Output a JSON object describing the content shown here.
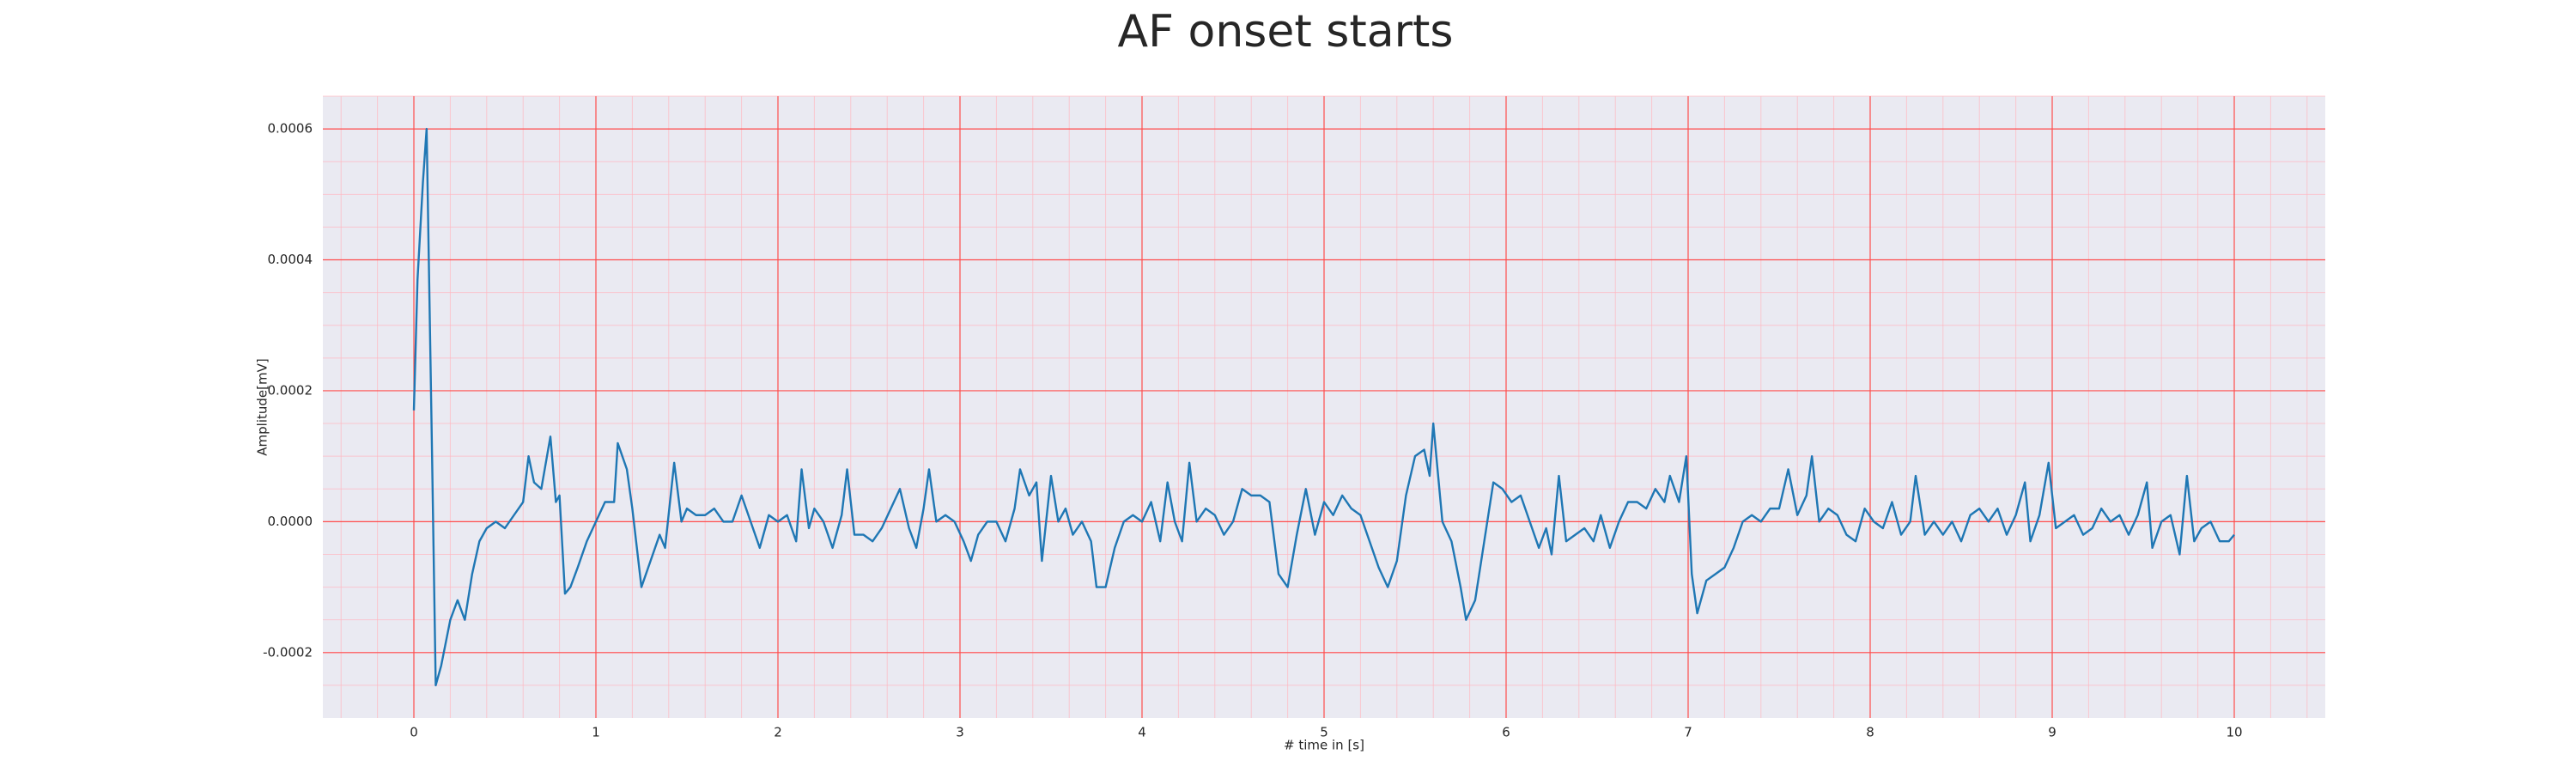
{
  "chart_data": {
    "type": "line",
    "title": "AF onset starts",
    "xlabel": "# time in [s]",
    "ylabel": "Amplitude[mV]",
    "color": "#1f77b4",
    "grid": true,
    "minor_grid": true,
    "xlim": [
      -0.5,
      10.5
    ],
    "ylim": [
      -0.0003,
      0.00065
    ],
    "xticks": [
      0,
      1,
      2,
      3,
      4,
      5,
      6,
      7,
      8,
      9,
      10
    ],
    "yticks": [
      -0.0002,
      {
        "value": 0,
        "label": "0.0000"
      },
      0.0002,
      0.0004,
      0.0006
    ],
    "x": [
      0,
      0.02,
      0.05,
      0.07,
      0.1,
      0.12,
      0.15,
      0.2,
      0.24,
      0.28,
      0.32,
      0.36,
      0.4,
      0.45,
      0.5,
      0.55,
      0.6,
      0.63,
      0.66,
      0.7,
      0.75,
      0.78,
      0.8,
      0.83,
      0.86,
      0.9,
      0.95,
      1.0,
      1.05,
      1.1,
      1.12,
      1.17,
      1.2,
      1.25,
      1.3,
      1.35,
      1.38,
      1.43,
      1.47,
      1.5,
      1.55,
      1.6,
      1.65,
      1.7,
      1.75,
      1.8,
      1.85,
      1.9,
      1.95,
      2.0,
      2.05,
      2.1,
      2.13,
      2.17,
      2.2,
      2.25,
      2.3,
      2.35,
      2.38,
      2.42,
      2.47,
      2.52,
      2.57,
      2.62,
      2.67,
      2.72,
      2.76,
      2.8,
      2.83,
      2.87,
      2.92,
      2.97,
      3.02,
      3.06,
      3.1,
      3.15,
      3.2,
      3.25,
      3.3,
      3.33,
      3.38,
      3.42,
      3.45,
      3.5,
      3.54,
      3.58,
      3.62,
      3.67,
      3.72,
      3.75,
      3.8,
      3.85,
      3.9,
      3.95,
      4.0,
      4.05,
      4.1,
      4.14,
      4.18,
      4.22,
      4.26,
      4.3,
      4.35,
      4.4,
      4.45,
      4.5,
      4.55,
      4.6,
      4.65,
      4.7,
      4.75,
      4.8,
      4.85,
      4.9,
      4.95,
      5.0,
      5.05,
      5.1,
      5.15,
      5.2,
      5.25,
      5.3,
      5.35,
      5.4,
      5.45,
      5.5,
      5.55,
      5.58,
      5.6,
      5.65,
      5.7,
      5.75,
      5.78,
      5.83,
      5.88,
      5.93,
      5.98,
      6.03,
      6.08,
      6.13,
      6.18,
      6.22,
      6.25,
      6.29,
      6.33,
      6.38,
      6.43,
      6.48,
      6.52,
      6.57,
      6.62,
      6.67,
      6.72,
      6.77,
      6.82,
      6.87,
      6.9,
      6.95,
      6.99,
      7.02,
      7.05,
      7.1,
      7.15,
      7.2,
      7.25,
      7.3,
      7.35,
      7.4,
      7.45,
      7.5,
      7.55,
      7.6,
      7.65,
      7.68,
      7.72,
      7.77,
      7.82,
      7.87,
      7.92,
      7.97,
      8.02,
      8.07,
      8.12,
      8.17,
      8.22,
      8.25,
      8.3,
      8.35,
      8.4,
      8.45,
      8.5,
      8.55,
      8.6,
      8.65,
      8.7,
      8.75,
      8.8,
      8.85,
      8.88,
      8.93,
      8.98,
      9.02,
      9.07,
      9.12,
      9.17,
      9.22,
      9.27,
      9.32,
      9.37,
      9.42,
      9.47,
      9.52,
      9.55,
      9.6,
      9.65,
      9.7,
      9.74,
      9.78,
      9.82,
      9.87,
      9.92,
      9.97,
      10.0
    ],
    "values": [
      0.00017,
      0.00037,
      0.00052,
      0.0006,
      0.0001,
      -0.00025,
      -0.00022,
      -0.00015,
      -0.00012,
      -0.00015,
      -8e-05,
      -3e-05,
      -1e-05,
      0.0,
      -1e-05,
      1e-05,
      3e-05,
      0.0001,
      6e-05,
      5e-05,
      0.00013,
      3e-05,
      4e-05,
      -0.00011,
      -0.0001,
      -7e-05,
      -3e-05,
      0.0,
      3e-05,
      3e-05,
      0.00012,
      8e-05,
      2e-05,
      -0.0001,
      -6e-05,
      -2e-05,
      -4e-05,
      9e-05,
      0.0,
      2e-05,
      1e-05,
      1e-05,
      2e-05,
      0.0,
      0.0,
      4e-05,
      0.0,
      -4e-05,
      1e-05,
      0.0,
      1e-05,
      -3e-05,
      8e-05,
      -1e-05,
      2e-05,
      0.0,
      -4e-05,
      1e-05,
      8e-05,
      -2e-05,
      -2e-05,
      -3e-05,
      -1e-05,
      2e-05,
      5e-05,
      -1e-05,
      -4e-05,
      2e-05,
      8e-05,
      0.0,
      1e-05,
      0.0,
      -3e-05,
      -6e-05,
      -2e-05,
      0.0,
      0.0,
      -3e-05,
      2e-05,
      8e-05,
      4e-05,
      6e-05,
      -6e-05,
      7e-05,
      0.0,
      2e-05,
      -2e-05,
      0.0,
      -3e-05,
      -0.0001,
      -0.0001,
      -4e-05,
      0.0,
      1e-05,
      0.0,
      3e-05,
      -3e-05,
      6e-05,
      0.0,
      -3e-05,
      9e-05,
      0.0,
      2e-05,
      1e-05,
      -2e-05,
      0.0,
      5e-05,
      4e-05,
      4e-05,
      3e-05,
      -8e-05,
      -0.0001,
      -2e-05,
      5e-05,
      -2e-05,
      3e-05,
      1e-05,
      4e-05,
      2e-05,
      1e-05,
      -3e-05,
      -7e-05,
      -0.0001,
      -6e-05,
      4e-05,
      0.0001,
      0.00011,
      7e-05,
      0.00015,
      0.0,
      -3e-05,
      -0.0001,
      -0.00015,
      -0.00012,
      -3e-05,
      6e-05,
      5e-05,
      3e-05,
      4e-05,
      0.0,
      -4e-05,
      -1e-05,
      -5e-05,
      7e-05,
      -3e-05,
      -2e-05,
      -1e-05,
      -3e-05,
      1e-05,
      -4e-05,
      0.0,
      3e-05,
      3e-05,
      2e-05,
      5e-05,
      3e-05,
      7e-05,
      3e-05,
      0.0001,
      -8e-05,
      -0.00014,
      -9e-05,
      -8e-05,
      -7e-05,
      -4e-05,
      0.0,
      1e-05,
      0.0,
      2e-05,
      2e-05,
      8e-05,
      1e-05,
      4e-05,
      0.0001,
      0.0,
      2e-05,
      1e-05,
      -2e-05,
      -3e-05,
      2e-05,
      0.0,
      -1e-05,
      3e-05,
      -2e-05,
      0.0,
      7e-05,
      -2e-05,
      0.0,
      -2e-05,
      0.0,
      -3e-05,
      1e-05,
      2e-05,
      0.0,
      2e-05,
      -2e-05,
      1e-05,
      6e-05,
      -3e-05,
      1e-05,
      9e-05,
      -1e-05,
      0.0,
      1e-05,
      -2e-05,
      -1e-05,
      2e-05,
      0.0,
      1e-05,
      -2e-05,
      1e-05,
      6e-05,
      -4e-05,
      0.0,
      1e-05,
      -5e-05,
      7e-05,
      -3e-05,
      -1e-05,
      0.0,
      -3e-05,
      -3e-05,
      -2e-05
    ]
  }
}
